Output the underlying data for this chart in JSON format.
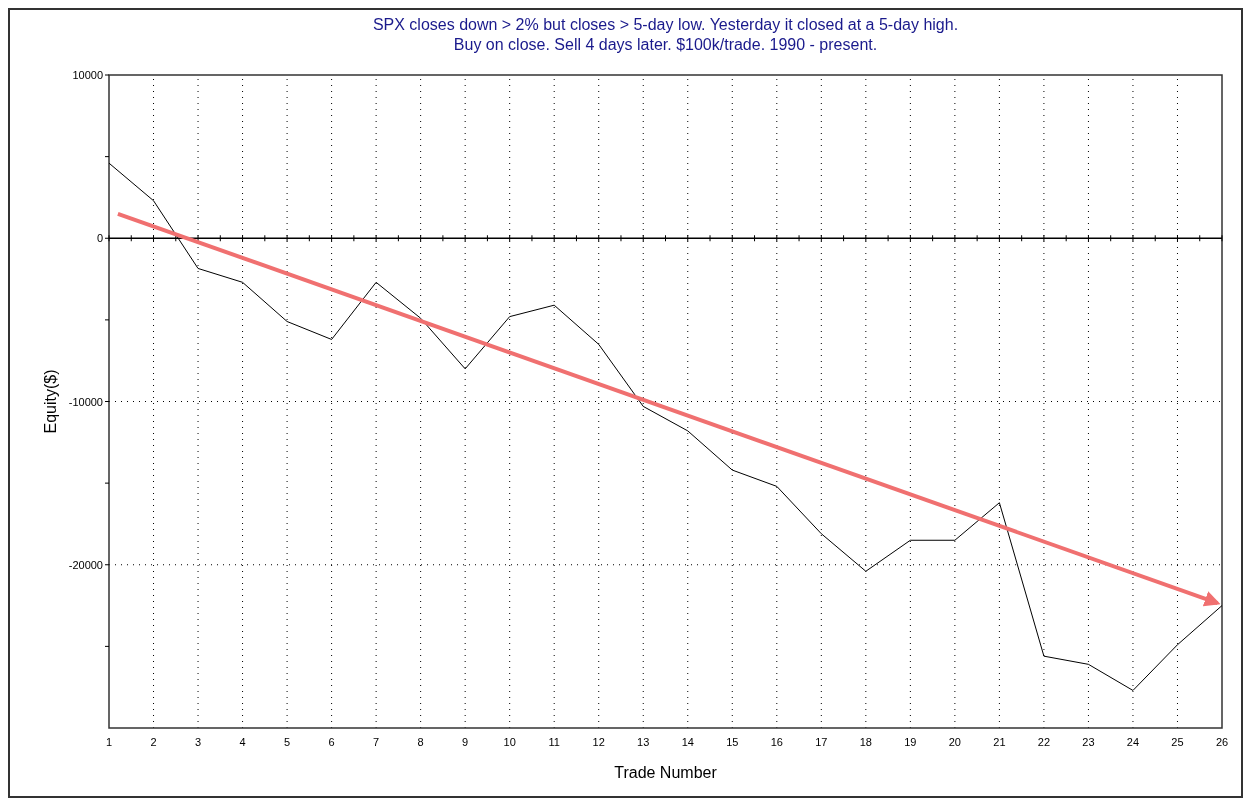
{
  "chart_data": {
    "type": "line",
    "title": "SPX closes down > 2% but closes > 5-day low. Yesterday it closed at a 5-day high.",
    "subtitle": "Buy on close. Sell 4 days later. $100k/trade. 1990 - present.",
    "xlabel": "Trade Number",
    "ylabel": "Equity($)",
    "x": [
      1,
      2,
      3,
      4,
      5,
      6,
      7,
      8,
      9,
      10,
      11,
      12,
      13,
      14,
      15,
      16,
      17,
      18,
      19,
      20,
      21,
      22,
      23,
      24,
      25,
      26
    ],
    "series": [
      {
        "color": "#000000",
        "values": [
          4600,
          2300,
          -1850,
          -2700,
          -5100,
          -6200,
          -2700,
          -4900,
          -8000,
          -4800,
          -4100,
          -6500,
          -10300,
          -11800,
          -14200,
          -15200,
          -18100,
          -20400,
          -18500,
          -18500,
          -16200,
          -25600,
          -26100,
          -27700,
          -24900,
          -22500
        ]
      },
      {
        "type": "line",
        "color": "#f07070",
        "x": [
          1.2,
          25.9
        ],
        "values": [
          1500,
          -22350
        ]
      }
    ],
    "xlim": [
      1,
      26
    ],
    "xticks": [
      1,
      2,
      3,
      4,
      5,
      6,
      7,
      8,
      9,
      10,
      11,
      12,
      13,
      14,
      15,
      16,
      17,
      18,
      19,
      20,
      21,
      22,
      23,
      24,
      25,
      26
    ],
    "ylim": [
      -30000,
      10000
    ],
    "yticks": [
      10000,
      {
        "value": 5000,
        "label": null
      },
      0,
      {
        "value": -5000,
        "label": null
      },
      -10000,
      {
        "value": -15000,
        "label": null
      },
      -20000,
      {
        "value": -25000,
        "label": null
      }
    ],
    "grid": true,
    "marker": "none",
    "line_style": "solid"
  }
}
